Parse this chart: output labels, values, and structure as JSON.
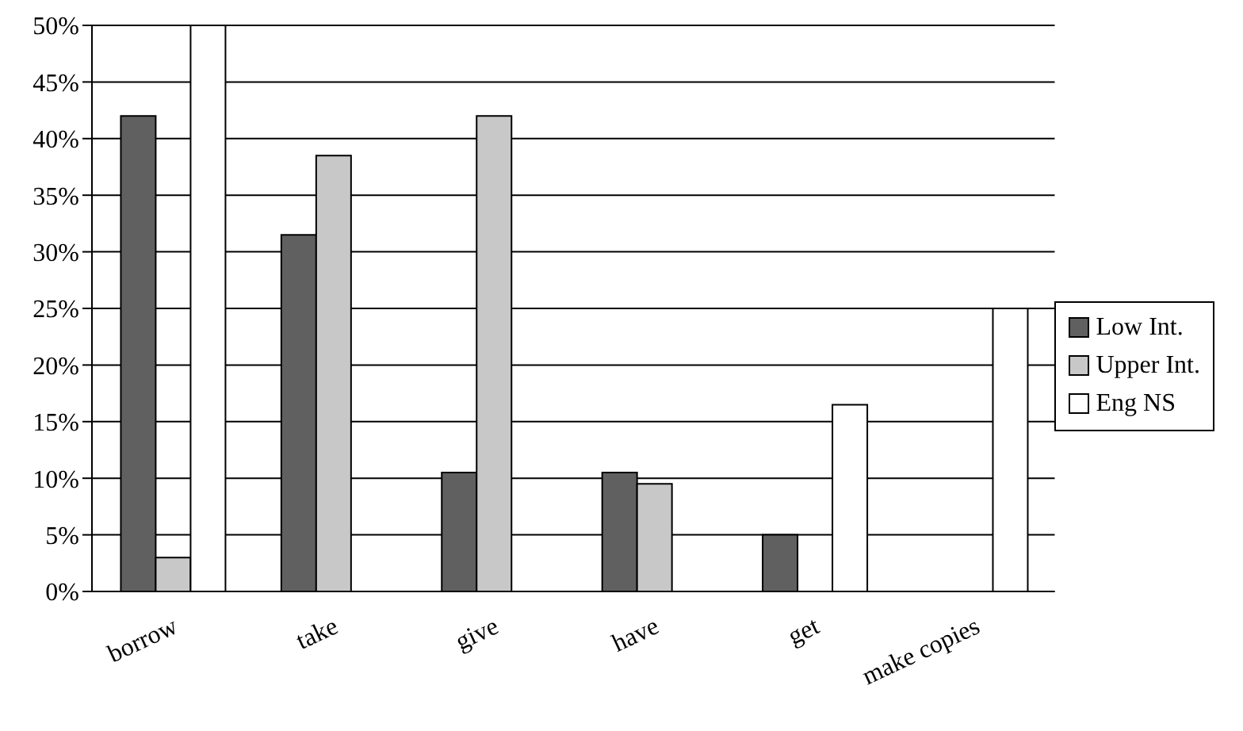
{
  "chart_data": {
    "type": "bar",
    "categories": [
      "borrow",
      "take",
      "give",
      "have",
      "get",
      "make copies"
    ],
    "series": [
      {
        "name": "Low Int.",
        "color": "#606060",
        "values": [
          42,
          31.5,
          10.5,
          10.5,
          5,
          0
        ]
      },
      {
        "name": "Upper Int.",
        "color": "#c8c8c8",
        "values": [
          3,
          38.5,
          42,
          9.5,
          0,
          0
        ]
      },
      {
        "name": "Eng NS",
        "color": "#ffffff",
        "values": [
          50,
          0,
          0,
          0,
          16.5,
          25
        ]
      }
    ],
    "ylim": [
      0,
      50
    ],
    "yticks": [
      {
        "value": 0,
        "label": "0%"
      },
      {
        "value": 5,
        "label": "5%"
      },
      {
        "value": 10,
        "label": "10%"
      },
      {
        "value": 15,
        "label": "15%"
      },
      {
        "value": 20,
        "label": "20%"
      },
      {
        "value": 25,
        "label": "25%"
      },
      {
        "value": 30,
        "label": "30%"
      },
      {
        "value": 35,
        "label": "35%"
      },
      {
        "value": 40,
        "label": "40%"
      },
      {
        "value": 45,
        "label": "45%"
      },
      {
        "value": 50,
        "label": "50%"
      }
    ],
    "grid": "y",
    "legend": "right"
  }
}
